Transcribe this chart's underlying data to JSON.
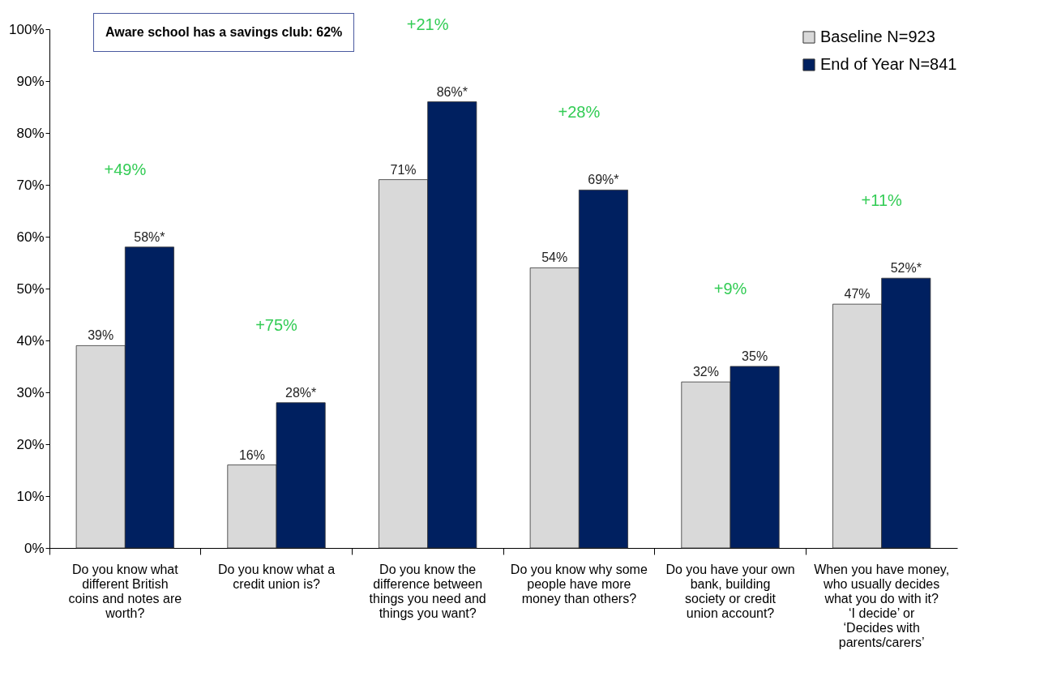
{
  "chart_data": {
    "type": "bar",
    "categories": [
      "Do you know what different British coins and notes are worth?",
      "Do you know what a credit union is?",
      "Do you know the difference between things you need and things you want?",
      "Do you know why some people have more money than others?",
      "Do you have your own bank, building society or credit union account?",
      "When you have money, who usually decides what you do with it? ‘I decide’ or ‘Decides with parents/carers’"
    ],
    "series": [
      {
        "name": "Baseline N=923",
        "color": "#d9d9d9",
        "values": [
          39,
          16,
          71,
          54,
          32,
          47
        ],
        "value_labels": [
          "39%",
          "16%",
          "71%",
          "54%",
          "32%",
          "47%"
        ]
      },
      {
        "name": "End of Year N=841",
        "color": "#002060",
        "values": [
          58,
          28,
          86,
          69,
          35,
          52
        ],
        "value_labels": [
          "58%*",
          "28%*",
          "86%*",
          "69%*",
          "35%",
          "52%*"
        ]
      }
    ],
    "ylim": [
      0,
      100
    ],
    "yticks": [
      {
        "value": 0,
        "label": "0%"
      },
      {
        "value": 10,
        "label": "10%"
      },
      {
        "value": 20,
        "label": "20%"
      },
      {
        "value": 30,
        "label": "30%"
      },
      {
        "value": 40,
        "label": "40%"
      },
      {
        "value": 50,
        "label": "50%"
      },
      {
        "value": 60,
        "label": "60%"
      },
      {
        "value": 70,
        "label": "70%"
      },
      {
        "value": 80,
        "label": "80%"
      },
      {
        "value": 90,
        "label": "90%"
      },
      {
        "value": 100,
        "label": "100%"
      }
    ],
    "grid": false,
    "legend": "top right",
    "annotations": [
      "Aware school has a savings club: 62%",
      "+49%",
      "+75%",
      "+21%",
      "+28%",
      "+9%",
      "+11%"
    ]
  }
}
